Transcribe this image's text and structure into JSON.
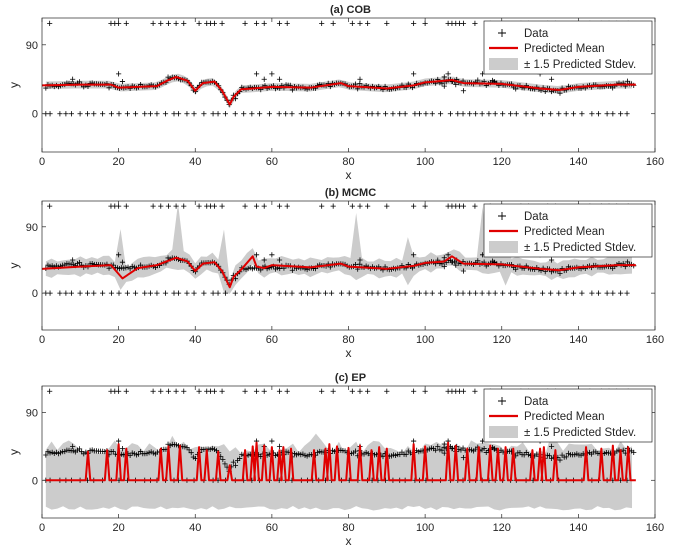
{
  "chart_data": [
    {
      "type": "line",
      "title": "(a) COB",
      "xlabel": "x",
      "ylabel": "y",
      "xlim": [
        0,
        160
      ],
      "ylim": [
        -50,
        125
      ],
      "xticks": [
        "0",
        "20",
        "40",
        "60",
        "80",
        "100",
        "120",
        "140",
        "160"
      ],
      "yticks": [
        "0",
        "90"
      ],
      "legend_position": "top-right",
      "series": [
        {
          "name": "Data",
          "marker": "+",
          "color": "#000000"
        },
        {
          "name": "Predicted Mean",
          "color": "#e00000",
          "x": [
            0,
            10,
            18,
            20,
            25,
            30,
            33,
            35,
            38,
            40,
            42,
            45,
            47,
            49,
            50,
            52,
            55,
            60,
            70,
            78,
            80,
            90,
            97,
            100,
            105,
            107,
            110,
            120,
            130,
            135,
            140,
            150,
            155
          ],
          "y": [
            37,
            38,
            38,
            34,
            35,
            36,
            44,
            48,
            43,
            30,
            40,
            42,
            30,
            12,
            22,
            32,
            33,
            35,
            34,
            40,
            36,
            33,
            37,
            41,
            43,
            44,
            40,
            39,
            33,
            31,
            35,
            38,
            38
          ]
        },
        {
          "name": "± 1.5 Predicted Stdev.",
          "color": "#cccccc",
          "band": "narrow"
        }
      ]
    },
    {
      "type": "line",
      "title": "(b) MCMC",
      "xlabel": "x",
      "ylabel": "y",
      "xlim": [
        0,
        160
      ],
      "ylim": [
        -50,
        125
      ],
      "xticks": [
        "0",
        "20",
        "40",
        "60",
        "80",
        "100",
        "120",
        "140",
        "160"
      ],
      "yticks": [
        "0",
        "90"
      ],
      "legend_position": "top-right",
      "series": [
        {
          "name": "Data",
          "marker": "+",
          "color": "#000000"
        },
        {
          "name": "Predicted Mean",
          "color": "#e00000",
          "x": [
            0,
            10,
            18,
            21,
            25,
            30,
            33,
            35,
            38,
            40,
            42,
            45,
            47,
            49,
            50,
            52,
            55,
            56,
            58,
            60,
            70,
            78,
            80,
            90,
            97,
            100,
            105,
            107,
            110,
            120,
            130,
            135,
            140,
            150,
            155
          ],
          "y": [
            33,
            36,
            38,
            20,
            34,
            38,
            44,
            48,
            43,
            30,
            40,
            42,
            30,
            8,
            22,
            32,
            50,
            36,
            34,
            38,
            35,
            40,
            36,
            33,
            37,
            41,
            43,
            50,
            40,
            39,
            33,
            31,
            35,
            38,
            38
          ]
        },
        {
          "name": "± 1.5 Predicted Stdev.",
          "color": "#cccccc",
          "band": "spiky"
        }
      ]
    },
    {
      "type": "line",
      "title": "(c) EP",
      "xlabel": "x",
      "ylabel": "y",
      "xlim": [
        0,
        160
      ],
      "ylim": [
        -50,
        125
      ],
      "xticks": [
        "0",
        "20",
        "40",
        "60",
        "80",
        "100",
        "120",
        "140",
        "160"
      ],
      "yticks": [
        "0",
        "90"
      ],
      "legend_position": "top-right",
      "series": [
        {
          "name": "Data",
          "marker": "+",
          "color": "#000000"
        },
        {
          "name": "Predicted Mean",
          "color": "#e00000",
          "baseline": 0,
          "spikes_x": [
            12,
            17,
            20,
            22,
            31,
            33,
            36,
            41,
            43,
            46,
            49,
            53,
            55,
            56,
            58,
            60,
            62,
            63,
            65,
            71,
            74,
            75,
            77,
            80,
            83,
            86,
            88,
            90,
            97,
            100,
            106,
            108,
            111,
            114,
            117,
            119,
            121,
            123,
            128,
            130,
            131,
            134,
            142,
            146,
            149,
            151,
            153
          ],
          "spikes_y": [
            38,
            40,
            48,
            42,
            42,
            45,
            46,
            44,
            40,
            38,
            20,
            40,
            45,
            50,
            46,
            44,
            40,
            44,
            42,
            40,
            42,
            48,
            45,
            43,
            46,
            40,
            44,
            42,
            48,
            45,
            50,
            46,
            42,
            44,
            46,
            42,
            44,
            42,
            40,
            42,
            44,
            40,
            44,
            42,
            46,
            40,
            44
          ]
        },
        {
          "name": "± 1.5 Predicted Stdev.",
          "color": "#cccccc",
          "band": "wide"
        }
      ]
    }
  ]
}
